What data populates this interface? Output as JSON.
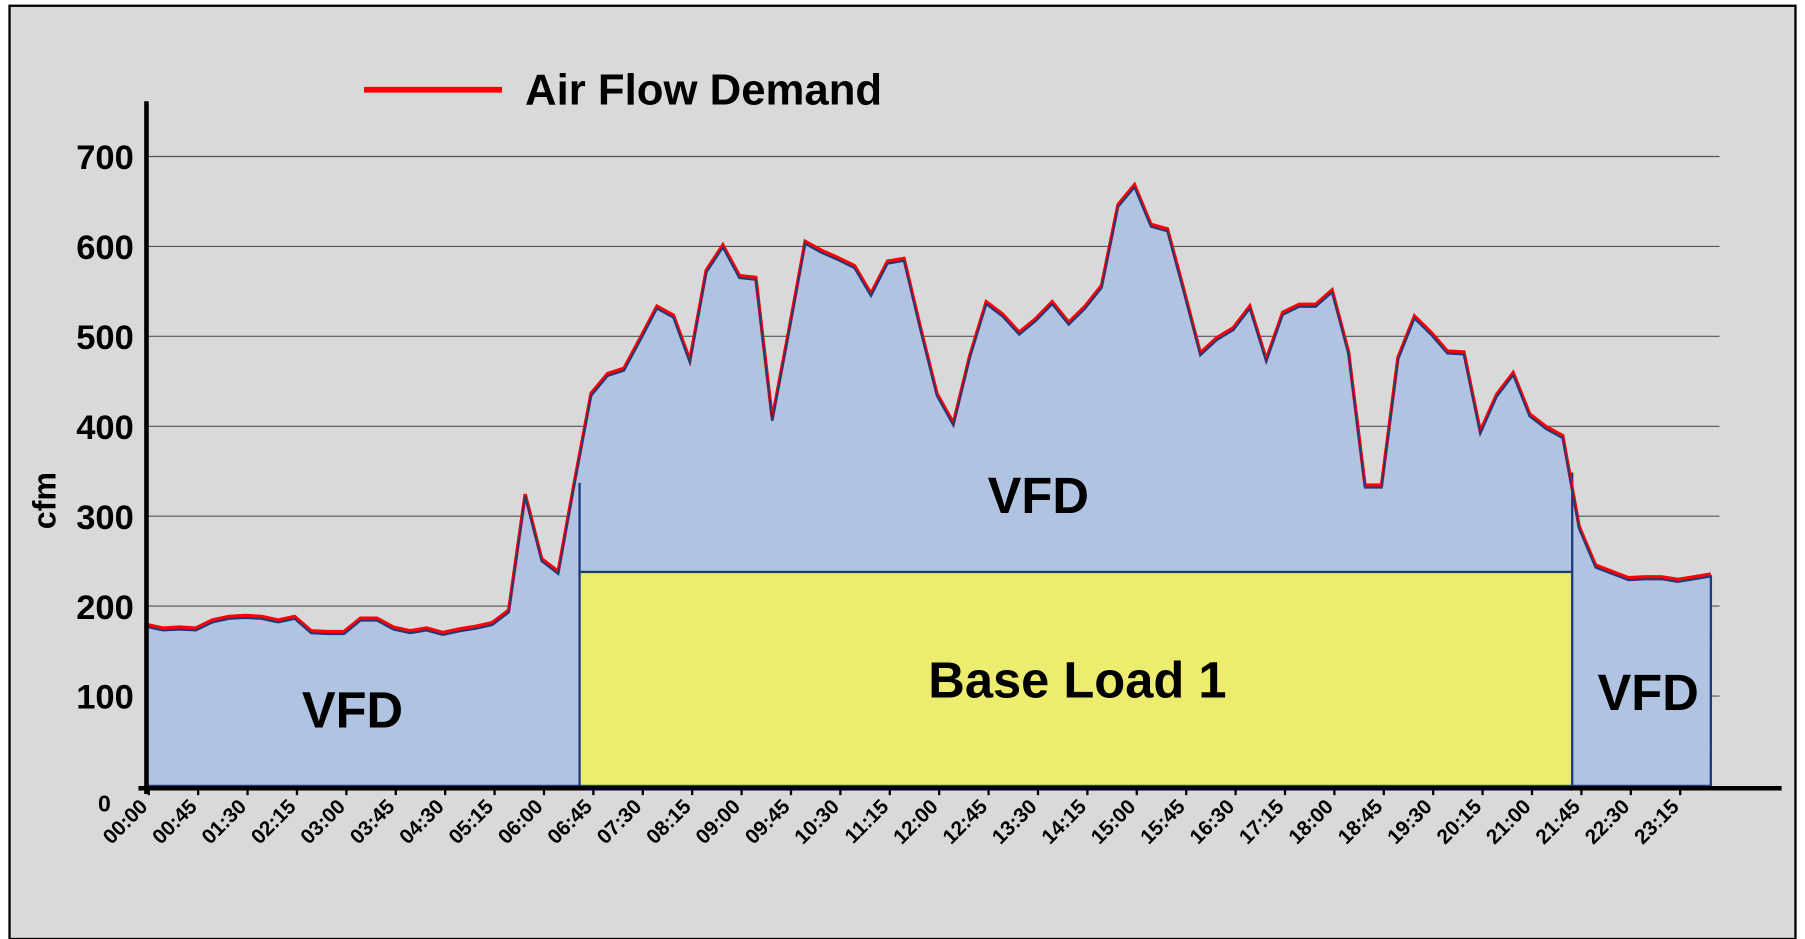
{
  "chart_data": {
    "type": "area",
    "y_label": "cfm",
    "ylim": [
      0,
      700
    ],
    "yticks": [
      0,
      100,
      200,
      300,
      400,
      500,
      600,
      700
    ],
    "grid": true,
    "categories": [
      "00:00",
      null,
      null,
      "00:45",
      null,
      null,
      "01:30",
      null,
      null,
      "02:15",
      null,
      null,
      "03:00",
      null,
      null,
      "03:45",
      null,
      null,
      "04:30",
      null,
      null,
      "05:15",
      null,
      null,
      "06:00",
      null,
      null,
      "06:45",
      null,
      null,
      "07:30",
      null,
      null,
      "08:15",
      null,
      null,
      "09:00",
      null,
      null,
      "09:45",
      null,
      null,
      "10:30",
      null,
      null,
      "11:15",
      null,
      null,
      "12:00",
      null,
      null,
      "12:45",
      null,
      null,
      "13:30",
      null,
      null,
      "14:15",
      null,
      null,
      "15:00",
      null,
      null,
      "15:45",
      null,
      null,
      "16:30",
      null,
      null,
      "17:15",
      null,
      null,
      "18:00",
      null,
      null,
      "18:45",
      null,
      null,
      "19:30",
      null,
      null,
      "20:15",
      null,
      null,
      "21:00",
      null,
      null,
      "21:45",
      null,
      null,
      "22:30",
      null,
      null,
      "23:15",
      null,
      null
    ],
    "series": [
      {
        "name": "Air Flow Demand",
        "color": "#ff0000",
        "fill": "#b0c4e2",
        "outline": "#1f3a7a",
        "values": [
          177,
          173,
          174,
          173,
          182,
          186,
          187,
          186,
          182,
          186,
          170,
          169,
          169,
          184,
          184,
          174,
          170,
          173,
          168,
          172,
          175,
          179,
          193,
          322,
          250,
          236,
          337,
          434,
          456,
          462,
          496,
          531,
          521,
          471,
          571,
          599,
          565,
          563,
          406,
          503,
          603,
          593,
          585,
          576,
          545,
          581,
          584,
          507,
          434,
          401,
          476,
          536,
          522,
          502,
          517,
          536,
          513,
          531,
          554,
          644,
          666,
          622,
          617,
          549,
          479,
          496,
          507,
          531,
          472,
          524,
          533,
          533,
          549,
          480,
          332,
          332,
          474,
          520,
          502,
          481,
          480,
          392,
          433,
          457,
          411,
          397,
          387,
          286,
          243,
          236,
          229,
          230,
          230,
          227,
          230,
          233
        ]
      }
    ],
    "base_load": {
      "label": "Base Load 1",
      "value": 238,
      "start": "06:45",
      "end": "21:45",
      "color": "#ecec6e"
    },
    "annotations": [
      "VFD",
      "VFD",
      "VFD"
    ]
  }
}
